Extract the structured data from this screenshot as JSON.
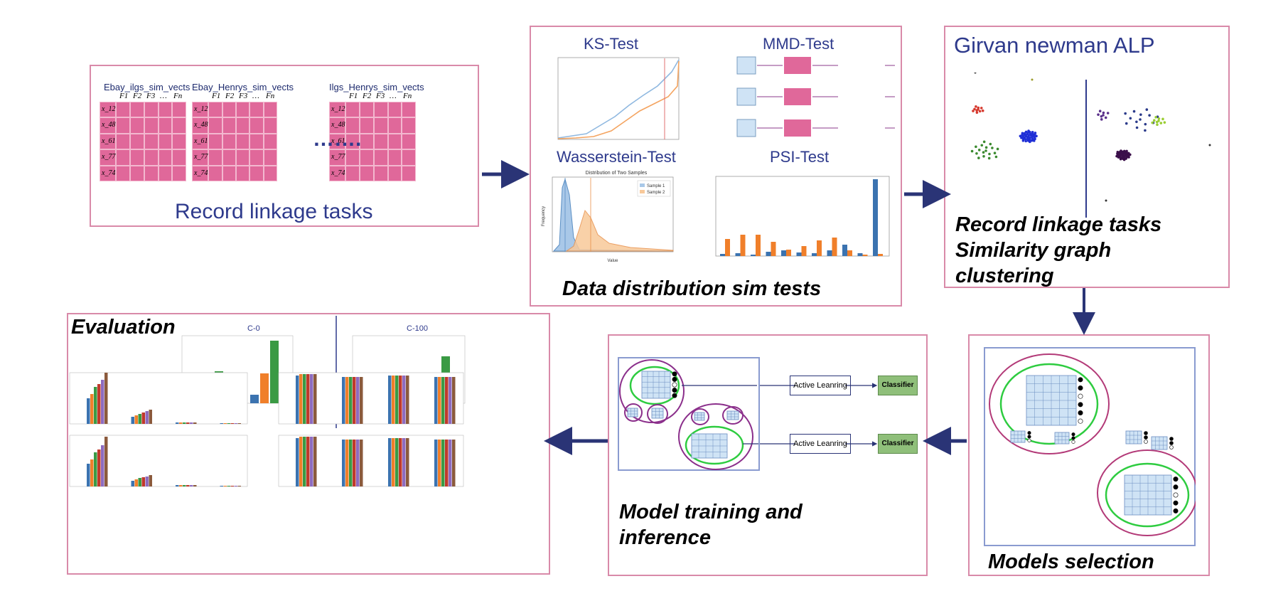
{
  "record_linkage_panel": {
    "title": "Record linkage tasks",
    "matrices": [
      {
        "name": "Ebay_ilgs_sim_vects"
      },
      {
        "name": "Ebay_Henrys_sim_vects"
      },
      {
        "name": "Ilgs_Henrys_sim_vects"
      }
    ],
    "features": [
      "F1",
      "F2",
      "F3",
      "…",
      "Fn"
    ],
    "rows": [
      "x_12",
      "x_48",
      "x_61",
      "x_77",
      "x_74"
    ],
    "ellipsis": "……."
  },
  "tests_panel": {
    "caption": "Data distribution sim tests",
    "ks": {
      "title": "KS-Test"
    },
    "mmd": {
      "title": "MMD-Test"
    },
    "wasserstein": {
      "title": "Wasserstein-Test",
      "plot_title": "Distribution of Two Samples",
      "legend": [
        "Sample 1",
        "Sample 2"
      ],
      "xlabel": "Value",
      "ylabel": "Frequency"
    },
    "psi": {
      "title": "PSI-Test"
    }
  },
  "graph_panel": {
    "title": "Girvan newman  ALP",
    "caption_lines": [
      "Record linkage tasks",
      "Similarity graph",
      "clustering"
    ]
  },
  "selection_panel": {
    "caption": "Models selection"
  },
  "training_panel": {
    "caption_lines": [
      "Model training and",
      "inference"
    ],
    "active_learning_label": "Active Leanring",
    "classifier_label": "Classifier"
  },
  "evaluation_panel": {
    "title": "Evaluation",
    "chart_titles": [
      "C-0",
      "C-100"
    ]
  },
  "colors": {
    "border": "#d98aa9",
    "matrix": "#e0689a",
    "arrow": "#2a3476",
    "cluster_green": "#2ecc40",
    "cluster_purple": "#8b2f8b",
    "classifier": "#8fbf7a"
  }
}
